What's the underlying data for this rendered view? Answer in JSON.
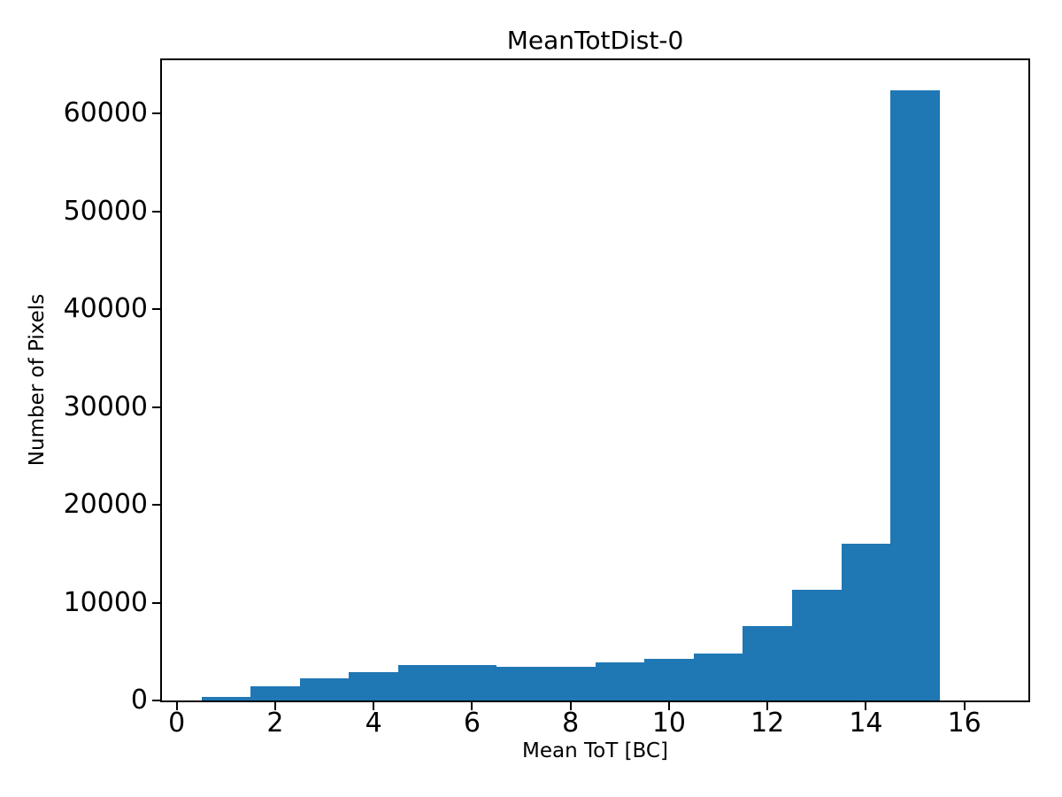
{
  "chart_data": {
    "type": "bar",
    "title": "MeanTotDist-0",
    "xlabel": "Mean ToT [BC]",
    "ylabel": "Number of Pixels",
    "bin_edges": [
      0.5,
      1.5,
      2.5,
      3.5,
      4.5,
      5.5,
      6.5,
      7.5,
      8.5,
      9.5,
      10.5,
      11.5,
      12.5,
      13.5,
      14.5,
      15.5
    ],
    "bin_centers": [
      1,
      2,
      3,
      4,
      5,
      6,
      7,
      8,
      9,
      10,
      11,
      12,
      13,
      14,
      15
    ],
    "values": [
      320,
      1420,
      2270,
      2900,
      3650,
      3650,
      3450,
      3450,
      3850,
      4300,
      4790,
      7580,
      11350,
      16050,
      62350
    ],
    "xlim": [
      -0.3,
      17.3
    ],
    "ylim": [
      0,
      65470
    ],
    "xticks": [
      0,
      2,
      4,
      6,
      8,
      10,
      12,
      14,
      16
    ],
    "yticks": [
      0,
      10000,
      20000,
      30000,
      40000,
      50000,
      60000
    ],
    "bar_color": "#1f77b4",
    "axis_color": "#000000",
    "background_color": "#ffffff",
    "grid": false,
    "legend_position": "none"
  }
}
